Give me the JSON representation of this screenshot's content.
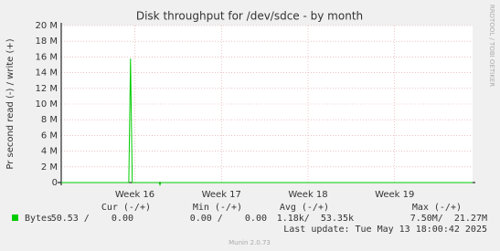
{
  "chart_data": {
    "type": "line",
    "title": "Disk throughput for /dev/sdce - by month",
    "y_label": "Pr second read (-) / write (+)",
    "side_label": "RRDTOOL / TOBI OETIKER",
    "x": [
      15.15,
      15.93,
      15.95,
      15.97,
      16.28,
      16.29,
      16.3,
      19.9
    ],
    "series": [
      {
        "name": "Bytes",
        "color": "#00cc00",
        "values": [
          0,
          0,
          15800000,
          0,
          0,
          -300000,
          0,
          0
        ]
      }
    ],
    "xlim": [
      15.15,
      19.9
    ],
    "xticks": [
      {
        "value": 16,
        "label": "Week 16"
      },
      {
        "value": 17,
        "label": "Week 17"
      },
      {
        "value": 18,
        "label": "Week 18"
      },
      {
        "value": 19,
        "label": "Week 19"
      }
    ],
    "ylim": [
      0,
      20000000
    ],
    "yticks": [
      0,
      {
        "value": 2000000,
        "label": "2 M"
      },
      {
        "value": 4000000,
        "label": "4 M"
      },
      {
        "value": 6000000,
        "label": "6 M"
      },
      {
        "value": 8000000,
        "label": "8 M"
      },
      {
        "value": 10000000,
        "label": "10 M"
      },
      {
        "value": 12000000,
        "label": "12 M"
      },
      {
        "value": 14000000,
        "label": "14 M"
      },
      {
        "value": 16000000,
        "label": "16 M"
      },
      {
        "value": 18000000,
        "label": "18 M"
      },
      {
        "value": 20000000,
        "label": "20 M"
      }
    ],
    "grid": true,
    "legend_table": {
      "headers": [
        "Cur (-/+)",
        "Min (-/+)",
        "Avg (-/+)",
        "Max (-/+)"
      ],
      "cells": [
        "50.53 /    0.00",
        "0.00 /    0.00",
        "1.18k/  53.35k",
        "7.50M/  21.27M"
      ]
    },
    "last_update": "Last update: Tue May 13 18:00:42 2025",
    "footer": "Munin 2.0.73"
  }
}
